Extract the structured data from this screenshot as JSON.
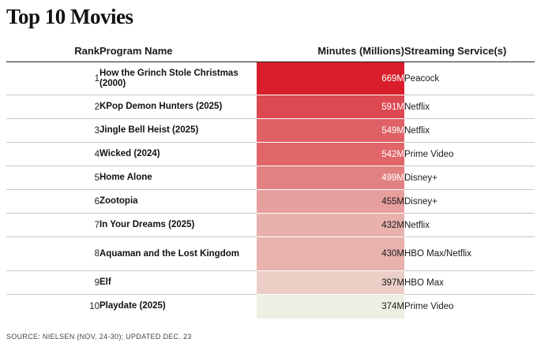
{
  "title": "Top 10 Movies",
  "source": "SOURCE: NIELSEN (NOV. 24-30); UPDATED DEC. 23",
  "columns": {
    "rank": "Rank",
    "name": "Program Name",
    "minutes": "Minutes (Millions)",
    "service": "Streaming Service(s)"
  },
  "rows": [
    {
      "rank": "1",
      "name": "How the Grinch Stole Christmas (2000)",
      "minutes": "669M",
      "service": "Peacock"
    },
    {
      "rank": "2",
      "name": "KPop Demon Hunters (2025)",
      "minutes": "591M",
      "service": "Netflix"
    },
    {
      "rank": "3",
      "name": "Jingle Bell Heist (2025)",
      "minutes": "549M",
      "service": "Netflix"
    },
    {
      "rank": "4",
      "name": "Wicked (2024)",
      "minutes": "542M",
      "service": "Prime Video"
    },
    {
      "rank": "5",
      "name": "Home Alone",
      "minutes": "499M",
      "service": "Disney+"
    },
    {
      "rank": "6",
      "name": "Zootopia",
      "minutes": "455M",
      "service": "Disney+"
    },
    {
      "rank": "7",
      "name": "In Your Dreams (2025)",
      "minutes": "432M",
      "service": "Netflix"
    },
    {
      "rank": "8",
      "name": "Aquaman and the Lost Kingdom",
      "minutes": "430M",
      "service": "HBO Max/Netflix"
    },
    {
      "rank": "9",
      "name": "Elf",
      "minutes": "397M",
      "service": "HBO Max"
    },
    {
      "rank": "10",
      "name": "Playdate (2025)",
      "minutes": "374M",
      "service": "Prime Video"
    }
  ],
  "colors": {
    "heat_high": "#d81e2b",
    "heat_low": "#eeeee2",
    "text_light": "#ffffff",
    "text_dark": "#1a1a1a"
  },
  "chart_data": {
    "type": "table",
    "title": "Top 10 Movies",
    "columns": [
      "Rank",
      "Program Name",
      "Minutes (Millions)",
      "Streaming Service(s)"
    ],
    "categories": [
      "How the Grinch Stole Christmas (2000)",
      "KPop Demon Hunters (2025)",
      "Jingle Bell Heist (2025)",
      "Wicked (2024)",
      "Home Alone",
      "Zootopia",
      "In Your Dreams (2025)",
      "Aquaman and the Lost Kingdom",
      "Elf",
      "Playdate (2025)"
    ],
    "values": [
      669,
      591,
      549,
      542,
      499,
      455,
      432,
      430,
      397,
      374
    ],
    "value_range": [
      374,
      669
    ]
  }
}
